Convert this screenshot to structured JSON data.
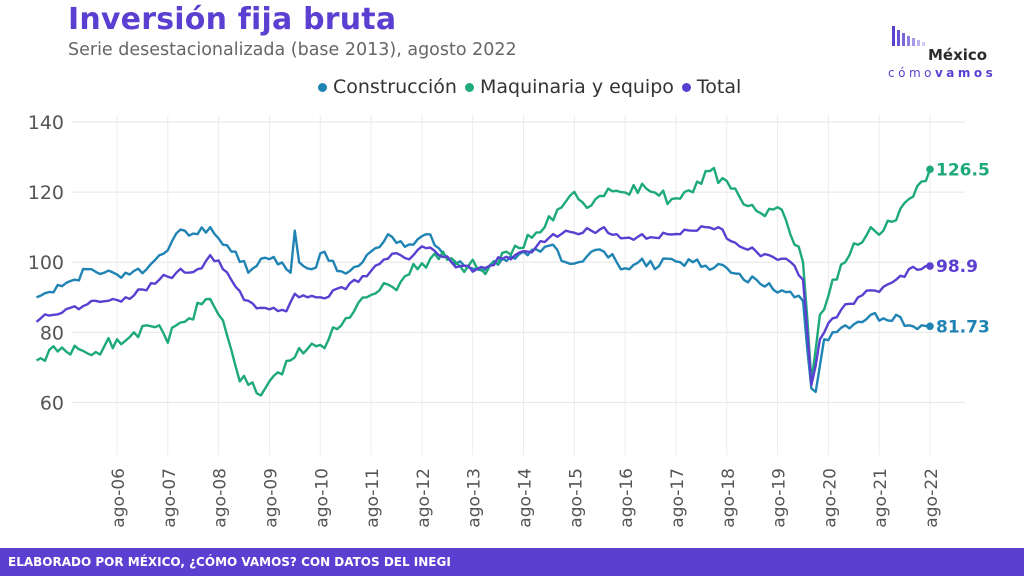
{
  "header": {
    "title": "Inversión fija bruta",
    "subtitle": "Serie desestacionalizada (base 2013), agosto 2022"
  },
  "logo": {
    "name": "México",
    "tag_light": "cómo",
    "tag_bold": "vamos"
  },
  "footer": {
    "text": "ELABORADO POR MÉXICO, ¿CÓMO VAMOS? CON DATOS DEL INEGI"
  },
  "colors": {
    "Construcción": "#1f84b4",
    "Maquinaria y equipo": "#1daa78",
    "Total": "#5b3fd1"
  },
  "chart_data": {
    "type": "line",
    "title": "Inversión fija bruta",
    "subtitle": "Serie desestacionalizada (base 2013), agosto 2022",
    "xlabel": "",
    "ylabel": "",
    "x_ticks": [
      "ago-06",
      "ago-07",
      "ago-08",
      "ago-09",
      "ago-10",
      "ago-11",
      "ago-12",
      "ago-13",
      "ago-14",
      "ago-15",
      "ago-16",
      "ago-17",
      "ago-18",
      "ago-19",
      "ago-20",
      "ago-21",
      "ago-22"
    ],
    "y_ticks": [
      60,
      80,
      100,
      120,
      140
    ],
    "ylim": [
      45,
      142
    ],
    "x_start": "2005-01",
    "x_end": "2022-08",
    "grid": true,
    "legend": "top-center",
    "end_labels": {
      "Construcción": "81.73",
      "Maquinaria y equipo": "126.5",
      "Total": "98.9"
    },
    "series": [
      {
        "name": "Construcción",
        "anchors": [
          [
            "2005-01",
            90
          ],
          [
            "2005-04",
            91.5
          ],
          [
            "2005-06",
            93.5
          ],
          [
            "2005-10",
            95
          ],
          [
            "2006-01",
            98
          ],
          [
            "2006-05",
            97
          ],
          [
            "2006-08",
            96.5
          ],
          [
            "2006-12",
            97.5
          ],
          [
            "2007-03",
            98
          ],
          [
            "2007-06",
            102
          ],
          [
            "2007-09",
            106
          ],
          [
            "2007-12",
            109
          ],
          [
            "2008-03",
            108
          ],
          [
            "2008-06",
            110
          ],
          [
            "2008-09",
            105
          ],
          [
            "2008-12",
            103
          ],
          [
            "2009-03",
            97
          ],
          [
            "2009-06",
            101
          ],
          [
            "2009-09",
            101.5
          ],
          [
            "2009-12",
            98
          ],
          [
            "2010-01",
            97
          ],
          [
            "2010-02",
            109
          ],
          [
            "2010-03",
            100
          ],
          [
            "2010-06",
            98
          ],
          [
            "2010-09",
            103
          ],
          [
            "2010-12",
            97.5
          ],
          [
            "2011-03",
            97.5
          ],
          [
            "2011-06",
            100
          ],
          [
            "2011-09",
            104
          ],
          [
            "2011-12",
            108
          ],
          [
            "2012-03",
            106
          ],
          [
            "2012-06",
            105
          ],
          [
            "2012-09",
            108
          ],
          [
            "2012-12",
            104
          ],
          [
            "2013-03",
            100
          ],
          [
            "2013-06",
            99
          ],
          [
            "2013-09",
            98
          ],
          [
            "2013-12",
            99
          ],
          [
            "2014-03",
            101
          ],
          [
            "2014-06",
            101
          ],
          [
            "2014-09",
            102
          ],
          [
            "2014-12",
            103
          ],
          [
            "2015-03",
            105
          ],
          [
            "2015-06",
            100
          ],
          [
            "2015-09",
            100
          ],
          [
            "2015-12",
            103
          ],
          [
            "2016-03",
            103
          ],
          [
            "2016-06",
            100
          ],
          [
            "2016-09",
            98
          ],
          [
            "2016-12",
            101
          ],
          [
            "2017-03",
            98
          ],
          [
            "2017-06",
            101
          ],
          [
            "2017-09",
            100
          ],
          [
            "2017-12",
            100
          ],
          [
            "2018-03",
            99
          ],
          [
            "2018-06",
            99.5
          ],
          [
            "2018-09",
            97
          ],
          [
            "2018-12",
            95
          ],
          [
            "2019-03",
            95
          ],
          [
            "2019-06",
            94
          ],
          [
            "2019-09",
            92
          ],
          [
            "2019-12",
            90
          ],
          [
            "2020-02",
            89
          ],
          [
            "2020-04",
            64
          ],
          [
            "2020-05",
            63
          ],
          [
            "2020-07",
            78
          ],
          [
            "2020-09",
            80
          ],
          [
            "2020-12",
            82
          ],
          [
            "2021-03",
            83
          ],
          [
            "2021-06",
            85
          ],
          [
            "2021-09",
            84
          ],
          [
            "2021-12",
            85
          ],
          [
            "2022-03",
            82
          ],
          [
            "2022-06",
            82
          ],
          [
            "2022-08",
            81.73
          ]
        ],
        "jitter": 1.4
      },
      {
        "name": "Maquinaria y equipo",
        "anchors": [
          [
            "2005-01",
            72
          ],
          [
            "2005-04",
            75
          ],
          [
            "2005-08",
            74.5
          ],
          [
            "2006-01",
            74
          ],
          [
            "2006-05",
            76
          ],
          [
            "2006-08",
            78
          ],
          [
            "2006-12",
            80
          ],
          [
            "2007-03",
            82
          ],
          [
            "2007-06",
            82
          ],
          [
            "2007-08",
            77
          ],
          [
            "2007-10",
            82
          ],
          [
            "2008-01",
            84
          ],
          [
            "2008-04",
            88
          ],
          [
            "2008-06",
            89.5
          ],
          [
            "2008-08",
            85
          ],
          [
            "2008-11",
            75
          ],
          [
            "2009-01",
            66
          ],
          [
            "2009-03",
            65
          ],
          [
            "2009-06",
            62
          ],
          [
            "2009-08",
            66
          ],
          [
            "2009-11",
            68
          ],
          [
            "2010-01",
            72
          ],
          [
            "2010-04",
            74
          ],
          [
            "2010-07",
            76
          ],
          [
            "2010-10",
            78
          ],
          [
            "2011-01",
            82
          ],
          [
            "2011-04",
            86
          ],
          [
            "2011-07",
            90
          ],
          [
            "2011-10",
            92
          ],
          [
            "2012-01",
            93
          ],
          [
            "2012-04",
            96
          ],
          [
            "2012-07",
            98
          ],
          [
            "2012-10",
            101
          ],
          [
            "2013-01",
            103
          ],
          [
            "2013-04",
            100
          ],
          [
            "2013-07",
            99
          ],
          [
            "2013-10",
            98
          ],
          [
            "2014-01",
            100
          ],
          [
            "2014-04",
            103
          ],
          [
            "2014-07",
            104
          ],
          [
            "2014-10",
            107
          ],
          [
            "2015-01",
            110
          ],
          [
            "2015-04",
            115
          ],
          [
            "2015-07",
            119
          ],
          [
            "2015-10",
            117
          ],
          [
            "2016-01",
            118
          ],
          [
            "2016-04",
            121
          ],
          [
            "2016-07",
            120
          ],
          [
            "2016-10",
            122
          ],
          [
            "2017-01",
            121
          ],
          [
            "2017-04",
            119
          ],
          [
            "2017-07",
            118
          ],
          [
            "2017-10",
            120
          ],
          [
            "2018-01",
            123
          ],
          [
            "2018-04",
            126
          ],
          [
            "2018-07",
            124
          ],
          [
            "2018-10",
            121
          ],
          [
            "2019-01",
            116
          ],
          [
            "2019-04",
            114
          ],
          [
            "2019-07",
            115
          ],
          [
            "2019-10",
            112
          ],
          [
            "2019-12",
            105
          ],
          [
            "2020-02",
            100
          ],
          [
            "2020-04",
            66
          ],
          [
            "2020-06",
            85
          ],
          [
            "2020-09",
            95
          ],
          [
            "2020-12",
            100
          ],
          [
            "2021-03",
            105
          ],
          [
            "2021-06",
            110
          ],
          [
            "2021-09",
            109
          ],
          [
            "2021-12",
            112
          ],
          [
            "2022-03",
            118
          ],
          [
            "2022-06",
            123
          ],
          [
            "2022-08",
            126.5
          ]
        ],
        "jitter": 2.2
      },
      {
        "name": "Total",
        "anchors": [
          [
            "2005-01",
            83
          ],
          [
            "2005-05",
            85
          ],
          [
            "2005-09",
            87
          ],
          [
            "2006-01",
            88
          ],
          [
            "2006-06",
            89
          ],
          [
            "2006-10",
            90
          ],
          [
            "2007-03",
            92
          ],
          [
            "2007-06",
            95
          ],
          [
            "2007-10",
            97
          ],
          [
            "2008-03",
            98
          ],
          [
            "2008-06",
            102
          ],
          [
            "2008-09",
            98
          ],
          [
            "2008-12",
            93
          ],
          [
            "2009-03",
            89
          ],
          [
            "2009-06",
            87
          ],
          [
            "2009-09",
            87
          ],
          [
            "2009-12",
            86
          ],
          [
            "2010-02",
            91
          ],
          [
            "2010-05",
            90
          ],
          [
            "2010-08",
            90
          ],
          [
            "2010-11",
            92
          ],
          [
            "2011-03",
            94
          ],
          [
            "2011-06",
            96
          ],
          [
            "2011-09",
            99
          ],
          [
            "2011-12",
            101
          ],
          [
            "2012-03",
            102
          ],
          [
            "2012-06",
            102
          ],
          [
            "2012-09",
            104
          ],
          [
            "2012-12",
            102
          ],
          [
            "2013-03",
            100
          ],
          [
            "2013-06",
            99
          ],
          [
            "2013-09",
            98
          ],
          [
            "2013-12",
            99
          ],
          [
            "2014-03",
            101
          ],
          [
            "2014-06",
            102
          ],
          [
            "2014-09",
            103
          ],
          [
            "2014-12",
            106
          ],
          [
            "2015-03",
            108
          ],
          [
            "2015-06",
            109
          ],
          [
            "2015-09",
            108
          ],
          [
            "2015-12",
            109
          ],
          [
            "2016-03",
            110
          ],
          [
            "2016-06",
            108
          ],
          [
            "2016-09",
            107
          ],
          [
            "2016-12",
            108
          ],
          [
            "2017-03",
            107
          ],
          [
            "2017-06",
            108
          ],
          [
            "2017-09",
            108
          ],
          [
            "2017-12",
            109
          ],
          [
            "2018-03",
            110
          ],
          [
            "2018-06",
            110
          ],
          [
            "2018-09",
            106
          ],
          [
            "2018-12",
            104
          ],
          [
            "2019-03",
            103
          ],
          [
            "2019-06",
            102
          ],
          [
            "2019-09",
            101
          ],
          [
            "2019-12",
            99
          ],
          [
            "2020-02",
            95
          ],
          [
            "2020-04",
            65
          ],
          [
            "2020-06",
            78
          ],
          [
            "2020-09",
            84
          ],
          [
            "2020-12",
            88
          ],
          [
            "2021-03",
            90
          ],
          [
            "2021-06",
            92
          ],
          [
            "2021-09",
            93
          ],
          [
            "2021-12",
            95
          ],
          [
            "2022-03",
            98
          ],
          [
            "2022-06",
            98
          ],
          [
            "2022-08",
            98.9
          ]
        ],
        "jitter": 1.2
      }
    ]
  }
}
